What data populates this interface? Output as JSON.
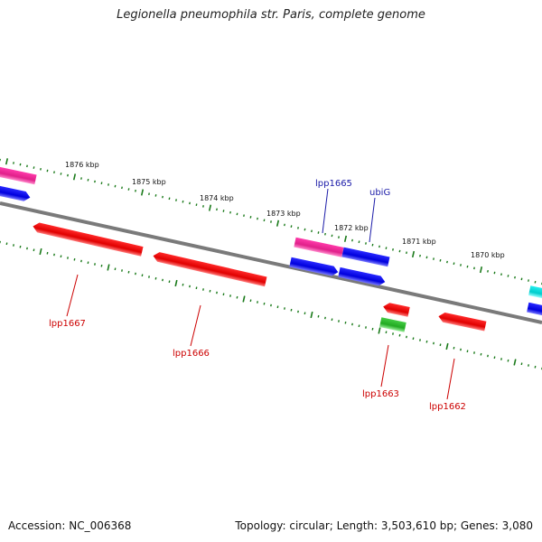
{
  "title": "Legionella pneumophila str. Paris, complete genome",
  "footer": {
    "accession": "Accession: NC_006368",
    "summary": "Topology: circular; Length: 3,503,610 bp; Genes: 3,080"
  },
  "ticks": [
    {
      "label": "1876 kbp"
    },
    {
      "label": "1875 kbp"
    },
    {
      "label": "1874 kbp"
    },
    {
      "label": "1873 kbp"
    },
    {
      "label": "1872 kbp"
    },
    {
      "label": "1871 kbp"
    },
    {
      "label": "1870 kbp"
    }
  ],
  "gene_labels_top": [
    "lpp1665",
    "ubiG"
  ],
  "gene_labels_bottom": [
    "lpp1667",
    "lpp1666",
    "lpp1663",
    "lpp1662"
  ],
  "colors": {
    "backbone": "#808080",
    "tick": "#1a7a1a",
    "gene_red": "#ee0000",
    "gene_blue": "#1a1aee",
    "gene_pink": "#ee2a99",
    "gene_green": "#33bb33",
    "gene_cyan": "#11dddd",
    "label_top": "#1a1aa8",
    "label_bottom": "#cc0000"
  }
}
